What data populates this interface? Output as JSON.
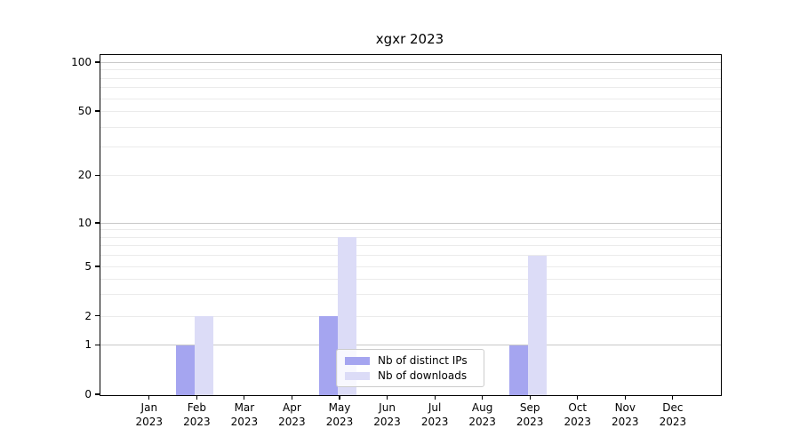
{
  "chart_data": {
    "type": "bar",
    "title": "xgxr 2023",
    "categories": [
      {
        "month": "Jan",
        "year": "2023"
      },
      {
        "month": "Feb",
        "year": "2023"
      },
      {
        "month": "Mar",
        "year": "2023"
      },
      {
        "month": "Apr",
        "year": "2023"
      },
      {
        "month": "May",
        "year": "2023"
      },
      {
        "month": "Jun",
        "year": "2023"
      },
      {
        "month": "Jul",
        "year": "2023"
      },
      {
        "month": "Aug",
        "year": "2023"
      },
      {
        "month": "Sep",
        "year": "2023"
      },
      {
        "month": "Oct",
        "year": "2023"
      },
      {
        "month": "Nov",
        "year": "2023"
      },
      {
        "month": "Dec",
        "year": "2023"
      }
    ],
    "series": [
      {
        "name": "Nb of distinct IPs",
        "color": "#a5a5f0",
        "values": [
          0,
          1,
          0,
          0,
          2,
          0,
          0,
          0,
          1,
          0,
          0,
          0
        ]
      },
      {
        "name": "Nb of downloads",
        "color": "#dcdcf7",
        "values": [
          0,
          2,
          0,
          0,
          8,
          0,
          0,
          0,
          6,
          0,
          0,
          0
        ]
      }
    ],
    "y_ticks": [
      0,
      1,
      2,
      5,
      10,
      20,
      50,
      100
    ],
    "ylim": [
      0,
      110
    ],
    "yscale": "symlog",
    "grid": true,
    "legend_position": "lower center",
    "colors": {
      "grid_major": "#c8c8c8",
      "grid_minor": "#ebebeb",
      "spine": "#000000",
      "legend_border": "#cccccc"
    }
  }
}
